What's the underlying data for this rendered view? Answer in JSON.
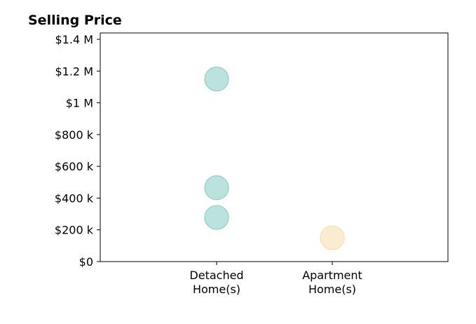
{
  "chart_data": {
    "type": "scatter",
    "title": "Selling Price",
    "xlabel": "",
    "ylabel": "",
    "categories": [
      [
        "Detached",
        "Home(s)"
      ],
      [
        "Apartment",
        "Home(s)"
      ]
    ],
    "ylim": [
      0,
      1440000
    ],
    "yticks": [
      {
        "value": 0,
        "label": "$0"
      },
      {
        "value": 200000,
        "label": "$200 k"
      },
      {
        "value": 400000,
        "label": "$400 k"
      },
      {
        "value": 600000,
        "label": "$600 k"
      },
      {
        "value": 800000,
        "label": "$800 k"
      },
      {
        "value": 1000000,
        "label": "$1 M"
      },
      {
        "value": 1200000,
        "label": "$1.2 M"
      },
      {
        "value": 1400000,
        "label": "$1.4 M"
      }
    ],
    "grid": false,
    "points": [
      {
        "category": 0,
        "y": 1150000,
        "color": "#8fcfc7"
      },
      {
        "category": 0,
        "y": 465000,
        "color": "#8fcfc7"
      },
      {
        "category": 0,
        "y": 278000,
        "color": "#8fcfc7"
      },
      {
        "category": 1,
        "y": 150000,
        "color": "#f5dfb0"
      }
    ]
  }
}
